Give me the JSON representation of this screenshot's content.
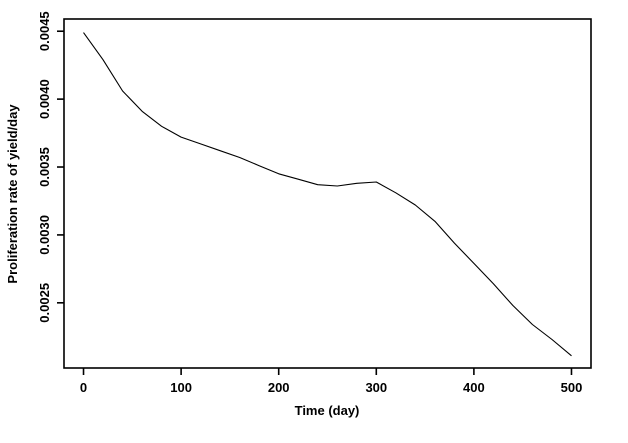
{
  "chart_data": {
    "type": "line",
    "title": "",
    "xlabel": "Time (day)",
    "ylabel": "Proliferation rate of yield/day",
    "x": [
      0,
      20,
      40,
      60,
      80,
      100,
      120,
      140,
      160,
      180,
      200,
      220,
      240,
      260,
      280,
      300,
      320,
      340,
      360,
      380,
      400,
      420,
      440,
      460,
      480,
      500
    ],
    "y": [
      0.00449,
      0.00429,
      0.00406,
      0.00391,
      0.0038,
      0.00372,
      0.00367,
      0.00362,
      0.00357,
      0.00351,
      0.00345,
      0.00341,
      0.00337,
      0.00336,
      0.00338,
      0.00339,
      0.00331,
      0.00322,
      0.0031,
      0.00294,
      0.00279,
      0.00264,
      0.00248,
      0.00234,
      0.00223,
      0.00211
    ],
    "xticks": [
      0,
      100,
      200,
      300,
      400,
      500
    ],
    "xtick_labels": [
      "0",
      "100",
      "200",
      "300",
      "400",
      "500"
    ],
    "yticks": [
      0.0025,
      0.003,
      0.0035,
      0.004,
      0.0045
    ],
    "ytick_labels": [
      "0.0025",
      "0.0030",
      "0.0035",
      "0.0040",
      "0.0045"
    ],
    "xlim": [
      -20,
      520
    ],
    "ylim": [
      0.00202,
      0.00459
    ],
    "line_color": "#000000",
    "axis_color": "#000000",
    "background": "#ffffff",
    "grid": false,
    "legend": null
  }
}
